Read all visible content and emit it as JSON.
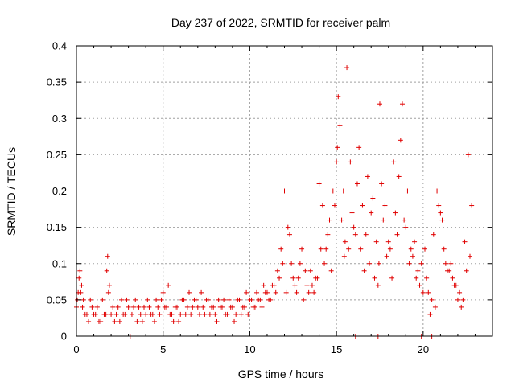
{
  "chart_data": {
    "type": "scatter",
    "title": "Day 237 of 2022, SRMTID for receiver palm",
    "xlabel": "GPS time / hours",
    "ylabel": "SRMTID / TECUs",
    "xlim": [
      0,
      24
    ],
    "ylim": [
      0,
      0.4
    ],
    "xticks": [
      0,
      5,
      10,
      15,
      20
    ],
    "xtick_labels": [
      "0",
      "5",
      "10",
      "15",
      "20"
    ],
    "yticks": [
      0,
      0.05,
      0.1,
      0.15,
      0.2,
      0.25,
      0.3,
      0.35,
      0.4
    ],
    "ytick_labels": [
      "0",
      "0.05",
      "0.1",
      "0.15",
      "0.2",
      "0.25",
      "0.3",
      "0.35",
      "0.4"
    ],
    "grid": true,
    "marker": "+",
    "series_color": "#e00000",
    "series": [
      {
        "name": "SRMTID",
        "x": [
          0.0,
          0.1,
          0.2,
          0.3,
          0.4,
          0.5,
          0.7,
          0.9,
          1.1,
          1.3,
          1.5,
          1.7,
          1.8,
          1.9,
          2.0,
          2.2,
          2.4,
          2.6,
          2.8,
          3.0,
          3.2,
          3.4,
          3.6,
          3.8,
          4.0,
          4.2,
          4.4,
          4.6,
          4.8,
          5.0,
          5.2,
          5.4,
          5.6,
          5.8,
          6.0,
          6.2,
          6.4,
          6.6,
          6.8,
          7.0,
          7.2,
          7.4,
          7.6,
          7.8,
          8.0,
          8.2,
          8.4,
          8.6,
          8.8,
          9.0,
          9.2,
          9.4,
          9.6,
          9.8,
          10.0,
          10.2,
          10.4,
          10.6,
          10.8,
          11.0,
          11.2,
          11.4,
          11.6,
          11.8,
          12.0,
          12.2,
          12.4,
          12.6,
          12.8,
          13.0,
          13.2,
          13.4,
          13.6,
          13.8,
          14.0,
          14.2,
          14.4,
          14.6,
          14.8,
          15.0,
          15.1,
          15.2,
          15.4,
          15.5,
          15.6,
          15.8,
          16.0,
          16.2,
          16.4,
          16.6,
          16.8,
          17.0,
          17.2,
          17.4,
          17.5,
          17.6,
          17.8,
          18.0,
          18.2,
          18.4,
          18.6,
          18.8,
          19.0,
          19.2,
          19.4,
          19.6,
          19.8,
          20.0,
          20.2,
          20.4,
          20.6,
          20.8,
          21.0,
          21.2,
          21.4,
          21.6,
          21.8,
          22.0,
          22.2,
          22.4,
          22.6,
          22.8,
          3.1,
          16.1,
          17.4,
          19.9,
          20.5,
          0.05,
          0.15,
          0.25,
          0.35,
          0.6,
          0.8,
          1.0,
          1.2,
          1.4,
          1.6,
          1.75,
          1.85,
          2.1,
          2.3,
          2.5,
          2.7,
          2.9,
          3.3,
          3.5,
          3.7,
          3.9,
          4.1,
          4.3,
          4.5,
          4.7,
          4.9,
          5.1,
          5.3,
          5.5,
          5.7,
          5.9,
          6.1,
          6.3,
          6.5,
          6.7,
          6.9,
          7.1,
          7.3,
          7.5,
          7.7,
          7.9,
          8.1,
          8.3,
          8.5,
          8.7,
          8.9,
          9.1,
          9.3,
          9.5,
          9.7,
          9.9,
          10.1,
          10.3,
          10.5,
          10.7,
          10.9,
          11.1,
          11.3,
          11.5,
          11.7,
          11.9,
          12.1,
          12.3,
          12.5,
          12.7,
          12.9,
          13.1,
          13.3,
          13.5,
          13.7,
          13.9,
          14.1,
          14.3,
          14.5,
          14.7,
          14.9,
          15.05,
          15.3,
          15.45,
          15.7,
          15.9,
          16.1,
          16.3,
          16.5,
          16.7,
          16.9,
          17.1,
          17.3,
          17.45,
          17.7,
          17.9,
          18.1,
          18.3,
          18.5,
          18.7,
          18.9,
          19.1,
          19.3,
          19.5,
          19.7,
          19.9,
          20.1,
          20.3,
          20.5,
          20.7,
          20.9,
          21.1,
          21.3,
          21.5,
          21.7,
          21.9,
          22.1,
          22.3,
          22.5,
          22.7
        ],
        "y": [
          0.04,
          0.06,
          0.09,
          0.07,
          0.05,
          0.03,
          0.02,
          0.04,
          0.03,
          0.02,
          0.05,
          0.03,
          0.11,
          0.07,
          0.03,
          0.02,
          0.04,
          0.05,
          0.03,
          0.04,
          0.03,
          0.05,
          0.04,
          0.02,
          0.03,
          0.04,
          0.03,
          0.05,
          0.03,
          0.06,
          0.04,
          0.03,
          0.02,
          0.04,
          0.03,
          0.05,
          0.04,
          0.03,
          0.05,
          0.04,
          0.06,
          0.03,
          0.05,
          0.04,
          0.03,
          0.05,
          0.04,
          0.03,
          0.05,
          0.04,
          0.03,
          0.05,
          0.04,
          0.06,
          0.05,
          0.04,
          0.06,
          0.05,
          0.07,
          0.06,
          0.05,
          0.07,
          0.09,
          0.12,
          0.2,
          0.15,
          0.1,
          0.07,
          0.08,
          0.12,
          0.09,
          0.06,
          0.07,
          0.08,
          0.21,
          0.18,
          0.12,
          0.16,
          0.2,
          0.24,
          0.33,
          0.29,
          0.2,
          0.13,
          0.37,
          0.24,
          0.15,
          0.21,
          0.12,
          0.09,
          0.22,
          0.17,
          0.08,
          0.07,
          0.32,
          0.21,
          0.18,
          0.13,
          0.08,
          0.17,
          0.22,
          0.32,
          0.15,
          0.1,
          0.11,
          0.08,
          0.07,
          0.06,
          0.08,
          0.03,
          0.14,
          0.2,
          0.17,
          0.12,
          0.09,
          0.1,
          0.07,
          0.05,
          0.04,
          0.13,
          0.25,
          0.18,
          0.0,
          0.0,
          0.0,
          0.0,
          0.0,
          0.05,
          0.08,
          0.06,
          0.04,
          0.03,
          0.05,
          0.03,
          0.04,
          0.02,
          0.03,
          0.09,
          0.06,
          0.04,
          0.03,
          0.02,
          0.03,
          0.05,
          0.04,
          0.02,
          0.03,
          0.04,
          0.05,
          0.03,
          0.02,
          0.04,
          0.05,
          0.04,
          0.07,
          0.03,
          0.04,
          0.02,
          0.05,
          0.03,
          0.06,
          0.04,
          0.05,
          0.03,
          0.04,
          0.05,
          0.03,
          0.04,
          0.02,
          0.04,
          0.05,
          0.03,
          0.04,
          0.02,
          0.05,
          0.03,
          0.04,
          0.03,
          0.05,
          0.04,
          0.05,
          0.04,
          0.06,
          0.05,
          0.07,
          0.06,
          0.08,
          0.1,
          0.06,
          0.14,
          0.08,
          0.06,
          0.1,
          0.05,
          0.07,
          0.09,
          0.06,
          0.08,
          0.12,
          0.1,
          0.14,
          0.09,
          0.18,
          0.26,
          0.16,
          0.11,
          0.12,
          0.17,
          0.14,
          0.26,
          0.18,
          0.14,
          0.1,
          0.19,
          0.13,
          0.1,
          0.16,
          0.11,
          0.12,
          0.24,
          0.14,
          0.27,
          0.16,
          0.2,
          0.12,
          0.13,
          0.09,
          0.1,
          0.12,
          0.06,
          0.05,
          0.04,
          0.18,
          0.16,
          0.1,
          0.09,
          0.08,
          0.07,
          0.06,
          0.05,
          0.09,
          0.11
        ]
      }
    ]
  }
}
